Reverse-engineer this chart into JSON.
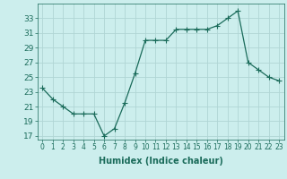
{
  "x": [
    0,
    1,
    2,
    3,
    4,
    5,
    6,
    7,
    8,
    9,
    10,
    11,
    12,
    13,
    14,
    15,
    16,
    17,
    18,
    19,
    20,
    21,
    22,
    23
  ],
  "y": [
    23.5,
    22.0,
    21.0,
    20.0,
    20.0,
    20.0,
    17.0,
    18.0,
    21.5,
    25.5,
    30.0,
    30.0,
    30.0,
    31.5,
    31.5,
    31.5,
    31.5,
    32.0,
    33.0,
    34.0,
    27.0,
    26.0,
    25.0,
    24.5
  ],
  "line_color": "#1a6b5a",
  "marker": "+",
  "marker_size": 4,
  "linewidth": 0.9,
  "xlabel": "Humidex (Indice chaleur)",
  "xlabel_fontsize": 7,
  "xtick_fontsize": 5.5,
  "ytick_fontsize": 6.5,
  "background_color": "#cceeed",
  "grid_color": "#b0d5d5",
  "xlim": [
    -0.5,
    23.5
  ],
  "ylim": [
    16.5,
    35
  ],
  "yticks": [
    17,
    19,
    21,
    23,
    25,
    27,
    29,
    31,
    33
  ],
  "xticks": [
    0,
    1,
    2,
    3,
    4,
    5,
    6,
    7,
    8,
    9,
    10,
    11,
    12,
    13,
    14,
    15,
    16,
    17,
    18,
    19,
    20,
    21,
    22,
    23
  ]
}
